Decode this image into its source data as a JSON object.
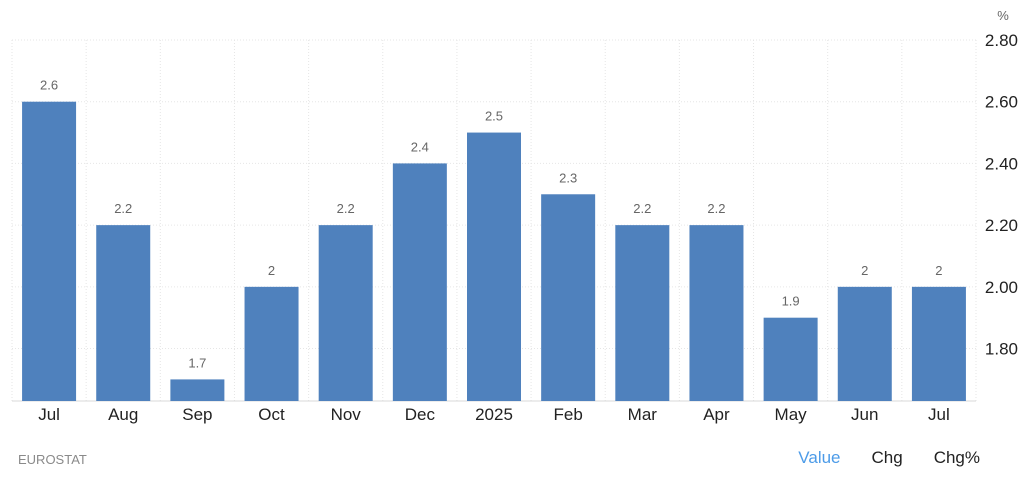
{
  "chart_data": {
    "type": "bar",
    "categories": [
      "Jul",
      "Aug",
      "Sep",
      "Oct",
      "Nov",
      "Dec",
      "2025",
      "Feb",
      "Mar",
      "Apr",
      "May",
      "Jun",
      "Jul"
    ],
    "values": [
      2.6,
      2.2,
      1.7,
      2.0,
      2.2,
      2.4,
      2.5,
      2.3,
      2.2,
      2.2,
      1.9,
      2.0,
      2.0
    ],
    "data_labels": [
      "2.6",
      "2.2",
      "1.7",
      "2",
      "2.2",
      "2.4",
      "2.5",
      "2.3",
      "2.2",
      "2.2",
      "1.9",
      "2",
      "2"
    ],
    "y_ticks": [
      1.8,
      2.0,
      2.2,
      2.4,
      2.6,
      2.8
    ],
    "y_tick_labels": [
      "1.80",
      "2.00",
      "2.20",
      "2.40",
      "2.60",
      "2.80"
    ],
    "ylim": [
      1.63,
      2.8
    ],
    "yunit": "%",
    "y_axis_position": "right",
    "grid": true,
    "bar_color": "#4f81bd"
  },
  "footer": {
    "source": "EUROSTAT",
    "tabs": [
      {
        "label": "Value",
        "active": true
      },
      {
        "label": "Chg",
        "active": false
      },
      {
        "label": "Chg%",
        "active": false
      }
    ]
  },
  "colors": {
    "active_tab": "#4c9be8",
    "grid": "#e6e6e6"
  }
}
